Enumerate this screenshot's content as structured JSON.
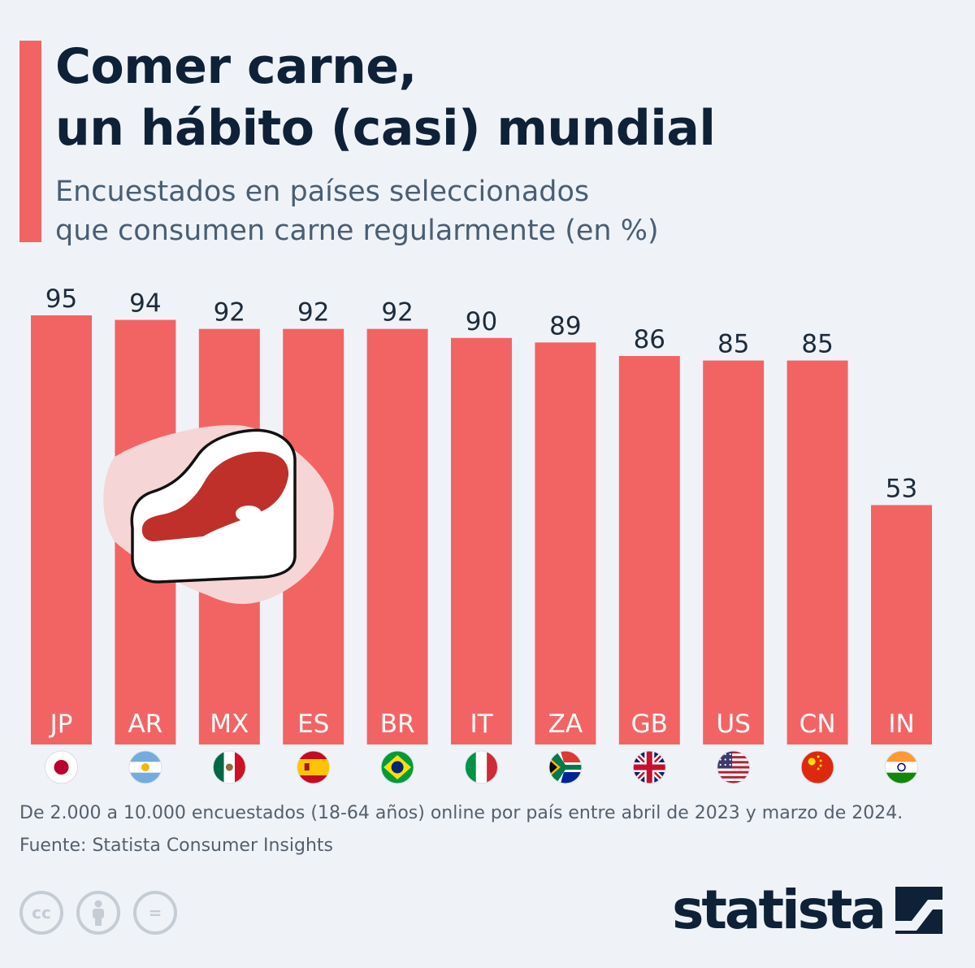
{
  "header": {
    "title_lines": [
      "Comer carne,",
      "un hábito (casi) mundial"
    ],
    "subtitle_lines": [
      "Encuestados en países seleccionados",
      "que consumen carne regularmente (en %)"
    ]
  },
  "chart_data": {
    "type": "bar",
    "title": "Comer carne, un hábito (casi) mundial",
    "subtitle": "Encuestados en países seleccionados que consumen carne regularmente (en %)",
    "categories": [
      "JP",
      "AR",
      "MX",
      "ES",
      "BR",
      "IT",
      "ZA",
      "GB",
      "US",
      "CN",
      "IN"
    ],
    "values": [
      95,
      94,
      92,
      92,
      92,
      90,
      89,
      86,
      85,
      85,
      53
    ],
    "ylim": [
      0,
      95
    ],
    "grid": false,
    "legend": "none",
    "bar_color": "#f26464",
    "value_labels": "above-bars",
    "category_labels": "inside-bar-bottom",
    "flags": [
      "flag-japan-icon",
      "flag-argentina-icon",
      "flag-mexico-icon",
      "flag-spain-icon",
      "flag-brazil-icon",
      "flag-italy-icon",
      "flag-south-africa-icon",
      "flag-united-kingdom-icon",
      "flag-united-states-icon",
      "flag-china-icon",
      "flag-india-icon"
    ],
    "illustration": "steak-icon"
  },
  "footer": {
    "note": "De 2.000 a 10.000 encuestados (18-64 años) online por país entre abril de 2023 y marzo de 2024.",
    "source": "Fuente: Statista Consumer Insights",
    "license_icons": [
      "cc-icon",
      "attribution-icon",
      "no-derivatives-icon"
    ],
    "license_text": [
      "cc",
      "="
    ],
    "brand": "statista"
  },
  "colors": {
    "background": "#eff3f8",
    "accent": "#f26464",
    "title": "#0f2137",
    "subtitle": "#4a5e72",
    "footer_text": "#555f6b",
    "steak_badge": "#f5d5d6",
    "steak_meat": "#c0302b"
  }
}
